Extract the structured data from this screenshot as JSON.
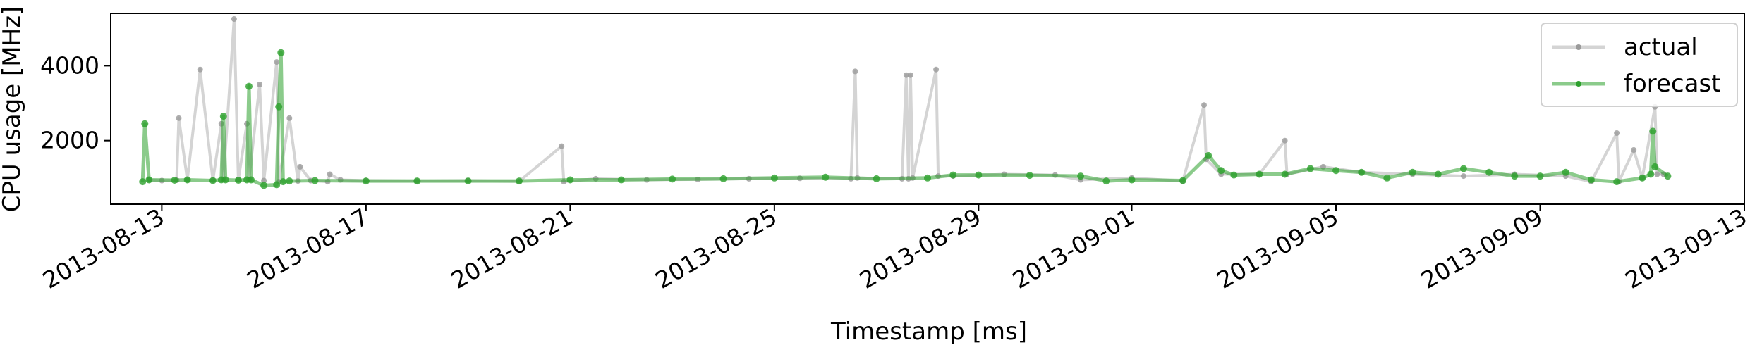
{
  "chart_data": {
    "type": "line",
    "xlabel": "Timestamp [ms]",
    "ylabel": "CPU usage [MHz]",
    "x_ticks": [
      "2013-08-13",
      "2013-08-17",
      "2013-08-21",
      "2013-08-25",
      "2013-08-29",
      "2013-09-01",
      "2013-09-05",
      "2013-09-09",
      "2013-09-13"
    ],
    "y_ticks": [
      2000,
      4000
    ],
    "xlim": [
      "2013-08-12T00:00",
      "2013-09-13T00:00"
    ],
    "ylim": [
      300,
      5400
    ],
    "grid": false,
    "legend_position": "top-right",
    "series": [
      {
        "name": "actual",
        "color": "#b0b0b0",
        "x": [
          "2013-08-12T18:00",
          "2013-08-13T00:00",
          "2013-08-13T07:00",
          "2013-08-13T08:00",
          "2013-08-13T12:00",
          "2013-08-13T18:00",
          "2013-08-14T00:00",
          "2013-08-14T04:00",
          "2013-08-14T05:00",
          "2013-08-14T10:00",
          "2013-08-14T12:00",
          "2013-08-14T16:00",
          "2013-08-14T17:00",
          "2013-08-14T22:00",
          "2013-08-15T00:00",
          "2013-08-15T06:00",
          "2013-08-15T07:00",
          "2013-08-15T12:00",
          "2013-08-15T16:00",
          "2013-08-15T17:00",
          "2013-08-15T22:00",
          "2013-08-16T06:00",
          "2013-08-16T07:00",
          "2013-08-16T12:00",
          "2013-08-17T00:00",
          "2013-08-18T00:00",
          "2013-08-19T00:00",
          "2013-08-20T00:00",
          "2013-08-20T20:00",
          "2013-08-20T21:00",
          "2013-08-21T12:00",
          "2013-08-22T12:00",
          "2013-08-23T12:00",
          "2013-08-24T12:00",
          "2013-08-25T12:00",
          "2013-08-26T12:00",
          "2013-08-26T14:00",
          "2013-08-26T15:00",
          "2013-08-27T12:00",
          "2013-08-27T14:00",
          "2013-08-27T15:00",
          "2013-08-27T16:00",
          "2013-08-27T17:00",
          "2013-08-28T04:00",
          "2013-08-28T05:00",
          "2013-08-28T12:00",
          "2013-08-29T12:00",
          "2013-08-30T12:00",
          "2013-08-31T00:00",
          "2013-09-01T00:00",
          "2013-09-02T00:00",
          "2013-09-02T10:00",
          "2013-09-02T11:00",
          "2013-09-02T18:00",
          "2013-09-03T12:00",
          "2013-09-04T00:00",
          "2013-09-04T01:00",
          "2013-09-04T18:00",
          "2013-09-05T12:00",
          "2013-09-06T12:00",
          "2013-09-07T12:00",
          "2013-09-08T12:00",
          "2013-09-09T12:00",
          "2013-09-10T00:00",
          "2013-09-10T12:00",
          "2013-09-10T13:00",
          "2013-09-10T20:00",
          "2013-09-11T00:00",
          "2013-09-11T06:00",
          "2013-09-11T07:00",
          "2013-09-11T10:00"
        ],
        "y": [
          950,
          930,
          940,
          2600,
          950,
          3900,
          940,
          2450,
          960,
          5250,
          950,
          2450,
          960,
          3500,
          930,
          4100,
          900,
          2600,
          920,
          1300,
          930,
          900,
          1100,
          950,
          930,
          920,
          930,
          910,
          1850,
          900,
          980,
          950,
          960,
          980,
          990,
          980,
          3850,
          1000,
          980,
          3750,
          980,
          3750,
          1000,
          3900,
          1050,
          1050,
          1100,
          1080,
          950,
          1000,
          920,
          2950,
          1500,
          1100,
          1100,
          2000,
          1100,
          1300,
          1150,
          1100,
          1050,
          1100,
          1050,
          900,
          2200,
          900,
          1750,
          1000,
          2900,
          1100,
          1100
        ]
      },
      {
        "name": "forecast",
        "color": "#2ca02c",
        "x": [
          "2013-08-12T15:00",
          "2013-08-12T16:00",
          "2013-08-12T18:00",
          "2013-08-13T06:00",
          "2013-08-13T12:00",
          "2013-08-14T00:00",
          "2013-08-14T04:00",
          "2013-08-14T05:00",
          "2013-08-14T06:00",
          "2013-08-14T12:00",
          "2013-08-14T16:00",
          "2013-08-14T17:00",
          "2013-08-14T18:00",
          "2013-08-15T00:00",
          "2013-08-15T06:00",
          "2013-08-15T07:00",
          "2013-08-15T08:00",
          "2013-08-15T09:00",
          "2013-08-15T12:00",
          "2013-08-16T00:00",
          "2013-08-17T00:00",
          "2013-08-18T00:00",
          "2013-08-19T00:00",
          "2013-08-20T00:00",
          "2013-08-21T00:00",
          "2013-08-22T00:00",
          "2013-08-23T00:00",
          "2013-08-24T00:00",
          "2013-08-25T00:00",
          "2013-08-26T00:00",
          "2013-08-27T00:00",
          "2013-08-28T00:00",
          "2013-08-28T12:00",
          "2013-08-29T00:00",
          "2013-08-30T00:00",
          "2013-08-31T00:00",
          "2013-08-31T12:00",
          "2013-09-01T00:00",
          "2013-09-02T00:00",
          "2013-09-02T12:00",
          "2013-09-02T18:00",
          "2013-09-03T00:00",
          "2013-09-03T12:00",
          "2013-09-04T00:00",
          "2013-09-04T12:00",
          "2013-09-05T00:00",
          "2013-09-05T12:00",
          "2013-09-06T00:00",
          "2013-09-06T12:00",
          "2013-09-07T00:00",
          "2013-09-07T12:00",
          "2013-09-08T00:00",
          "2013-09-08T12:00",
          "2013-09-09T00:00",
          "2013-09-09T12:00",
          "2013-09-10T00:00",
          "2013-09-10T12:00",
          "2013-09-11T00:00",
          "2013-09-11T04:00",
          "2013-09-11T05:00",
          "2013-09-11T06:00",
          "2013-09-11T12:00"
        ],
        "y": [
          900,
          2450,
          950,
          940,
          950,
          930,
          950,
          2650,
          950,
          940,
          950,
          3450,
          950,
          800,
          820,
          2900,
          4350,
          900,
          920,
          930,
          920,
          920,
          920,
          920,
          950,
          950,
          970,
          980,
          1000,
          1020,
          980,
          1000,
          1080,
          1080,
          1070,
          1050,
          920,
          950,
          930,
          1600,
          1200,
          1080,
          1100,
          1100,
          1250,
          1200,
          1150,
          1000,
          1150,
          1100,
          1250,
          1150,
          1050,
          1050,
          1150,
          950,
          900,
          1000,
          1100,
          2250,
          1300,
          1050
        ]
      }
    ]
  }
}
